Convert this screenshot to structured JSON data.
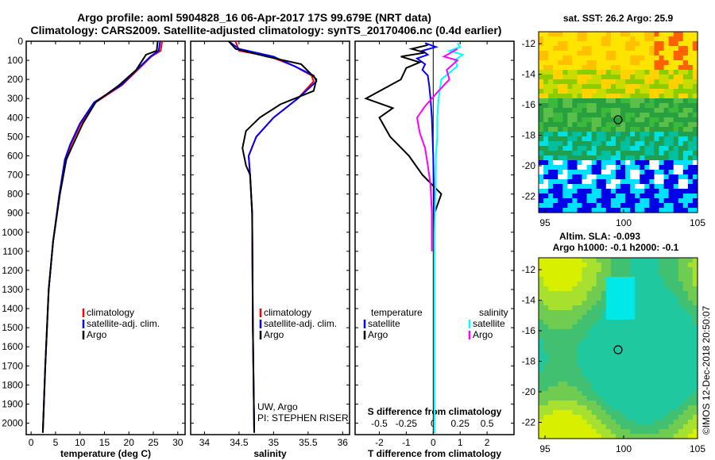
{
  "header": {
    "title_line1": "Argo profile: aoml 5904828_16 06-Apr-2017 17S 99.679E (NRT data)",
    "title_line2": "Climatology: CARS2009. Satellite-adjusted climatology: synTS_20170406.nc (0.4d earlier)"
  },
  "colors": {
    "climatology": "#ff0000",
    "satellite": "#0000ff",
    "argo": "#000000",
    "salinity_satellite": "#00ffff",
    "salinity_argo": "#ff00ff"
  },
  "chart_data": [
    {
      "id": "temperature",
      "type": "line",
      "xlabel": "temperature (deg C)",
      "xlim": [
        -1,
        31.5
      ],
      "xticks": [
        0,
        5,
        10,
        15,
        20,
        25,
        30
      ],
      "xtick_labels": [
        "0",
        "5",
        "10",
        "15",
        "20",
        "25",
        "30"
      ],
      "ylim": [
        2060,
        0
      ],
      "yticks": [
        0,
        100,
        200,
        300,
        400,
        500,
        600,
        700,
        800,
        900,
        1000,
        1100,
        1200,
        1300,
        1400,
        1500,
        1600,
        1700,
        1800,
        1900,
        2000
      ],
      "ytick_labels": [
        "0",
        "100",
        "200",
        "300",
        "400",
        "500",
        "600",
        "700",
        "800",
        "900",
        "1000",
        "1100",
        "1200",
        "1300",
        "1400",
        "1500",
        "1600",
        "1700",
        "1800",
        "1900",
        "2000"
      ],
      "legend": [
        "climatology",
        "satellite-adj. clim.",
        "Argo"
      ],
      "series": [
        {
          "name": "climatology",
          "color": "#ff0000",
          "points": [
            [
              26.8,
              0
            ],
            [
              26.5,
              50
            ],
            [
              24.6,
              80
            ],
            [
              21.8,
              150
            ],
            [
              18.6,
              230
            ],
            [
              13.2,
              320
            ],
            [
              10.2,
              430
            ],
            [
              8.2,
              540
            ],
            [
              7.0,
              620
            ],
            [
              5.8,
              800
            ],
            [
              4.5,
              1050
            ],
            [
              3.6,
              1300
            ],
            [
              2.9,
              1700
            ],
            [
              2.4,
              2050
            ]
          ]
        },
        {
          "name": "satellite-adj. clim.",
          "color": "#0000ff",
          "points": [
            [
              26.4,
              0
            ],
            [
              26.1,
              50
            ],
            [
              24.4,
              80
            ],
            [
              21.6,
              150
            ],
            [
              18.4,
              230
            ],
            [
              12.9,
              320
            ],
            [
              10.0,
              430
            ],
            [
              8.0,
              540
            ],
            [
              6.9,
              620
            ],
            [
              5.8,
              800
            ],
            [
              4.5,
              1050
            ],
            [
              3.6,
              1300
            ],
            [
              2.9,
              1700
            ],
            [
              2.4,
              2050
            ]
          ]
        },
        {
          "name": "Argo",
          "color": "#000000",
          "points": [
            [
              25.9,
              0
            ],
            [
              25.7,
              50
            ],
            [
              23.5,
              70
            ],
            [
              21.5,
              150
            ],
            [
              18.0,
              230
            ],
            [
              13.2,
              320
            ],
            [
              10.6,
              430
            ],
            [
              8.6,
              540
            ],
            [
              7.2,
              620
            ],
            [
              5.9,
              800
            ],
            [
              4.5,
              1050
            ],
            [
              3.6,
              1300
            ],
            [
              2.9,
              1700
            ],
            [
              2.4,
              2050
            ]
          ]
        }
      ]
    },
    {
      "id": "salinity",
      "type": "line",
      "xlabel": "salinity",
      "xlim": [
        33.8,
        36.1
      ],
      "xticks": [
        34,
        34.5,
        35,
        35.5,
        36
      ],
      "xtick_labels": [
        "34",
        "34.5",
        "35",
        "35.5",
        "36"
      ],
      "ylim": [
        2060,
        0
      ],
      "legend": [
        "climatology",
        "satellite-adj. clim.",
        "Argo"
      ],
      "annotations": [
        "UW, Argo",
        "PI: STEPHEN RISER"
      ],
      "series": [
        {
          "name": "climatology",
          "color": "#ff0000",
          "points": [
            [
              34.45,
              0
            ],
            [
              34.5,
              50
            ],
            [
              34.95,
              80
            ],
            [
              35.3,
              130
            ],
            [
              35.55,
              180
            ],
            [
              35.58,
              210
            ],
            [
              35.35,
              300
            ],
            [
              35.0,
              400
            ],
            [
              34.75,
              500
            ],
            [
              34.64,
              600
            ],
            [
              34.66,
              700
            ],
            [
              34.69,
              900
            ],
            [
              34.7,
              1500
            ],
            [
              34.72,
              2050
            ]
          ]
        },
        {
          "name": "satellite-adj. clim.",
          "color": "#0000ff",
          "points": [
            [
              34.35,
              0
            ],
            [
              34.5,
              40
            ],
            [
              35.0,
              80
            ],
            [
              35.3,
              130
            ],
            [
              35.58,
              180
            ],
            [
              35.62,
              210
            ],
            [
              35.35,
              300
            ],
            [
              35.0,
              400
            ],
            [
              34.75,
              500
            ],
            [
              34.64,
              600
            ],
            [
              34.66,
              700
            ],
            [
              34.69,
              900
            ],
            [
              34.7,
              1500
            ],
            [
              34.72,
              2050
            ]
          ]
        },
        {
          "name": "Argo",
          "color": "#000000",
          "points": [
            [
              34.35,
              0
            ],
            [
              34.45,
              40
            ],
            [
              34.9,
              80
            ],
            [
              35.4,
              120
            ],
            [
              35.62,
              200
            ],
            [
              35.58,
              260
            ],
            [
              35.1,
              330
            ],
            [
              34.8,
              400
            ],
            [
              34.6,
              470
            ],
            [
              34.55,
              560
            ],
            [
              34.6,
              650
            ],
            [
              34.66,
              700
            ],
            [
              34.69,
              900
            ],
            [
              34.7,
              1500
            ],
            [
              34.72,
              2050
            ]
          ]
        }
      ]
    },
    {
      "id": "difference",
      "type": "line",
      "xlabel": "T difference from climatology",
      "xlabel_top": "S difference from climatology",
      "xlim": [
        -2.9,
        3.0
      ],
      "xticks": [
        -2,
        -1,
        0,
        1,
        2
      ],
      "xtick_labels": [
        "-2",
        "-1",
        "0",
        "1",
        "2"
      ],
      "sxticks": [
        -2,
        -1,
        0,
        1,
        2
      ],
      "sxtick_labels": [
        "-0.5",
        "-0.25",
        "0",
        "0.25",
        "0.5"
      ],
      "ylim": [
        2060,
        0
      ],
      "legend_left_title": "temperature",
      "legend_right_title": "salinity",
      "legend_left": [
        "satellite",
        "Argo"
      ],
      "legend_right": [
        "satellite",
        "Argo"
      ],
      "series": [
        {
          "name": "temperature satellite",
          "color": "#0000ff",
          "points": [
            [
              -0.3,
              10
            ],
            [
              0.1,
              30
            ],
            [
              -0.4,
              50
            ],
            [
              -0.2,
              70
            ],
            [
              -0.6,
              90
            ],
            [
              -0.3,
              120
            ],
            [
              -0.4,
              150
            ],
            [
              -0.2,
              180
            ],
            [
              -0.15,
              230
            ],
            [
              -0.1,
              300
            ],
            [
              -0.05,
              400
            ],
            [
              0,
              600
            ],
            [
              0.05,
              1000
            ],
            [
              0.05,
              1500
            ],
            [
              0.05,
              2050
            ]
          ]
        },
        {
          "name": "temperature Argo",
          "color": "#000000",
          "points": [
            [
              -0.2,
              20
            ],
            [
              -0.8,
              40
            ],
            [
              -0.3,
              60
            ],
            [
              -1.2,
              80
            ],
            [
              -0.5,
              110
            ],
            [
              -1.0,
              140
            ],
            [
              -1.2,
              200
            ],
            [
              -2.5,
              300
            ],
            [
              -1.5,
              350
            ],
            [
              -2.0,
              400
            ],
            [
              -1.6,
              500
            ],
            [
              -0.9,
              600
            ],
            [
              -0.4,
              700
            ],
            [
              0.3,
              800
            ],
            [
              0.05,
              900
            ],
            [
              0.05,
              1100
            ],
            [
              0.05,
              1500
            ],
            [
              0.05,
              2050
            ]
          ]
        },
        {
          "name": "salinity satellite",
          "color": "#00ffff",
          "points": [
            [
              0.9,
              10
            ],
            [
              1.0,
              30
            ],
            [
              0.6,
              50
            ],
            [
              1.1,
              70
            ],
            [
              0.8,
              100
            ],
            [
              0.9,
              130
            ],
            [
              0.3,
              200
            ],
            [
              0.2,
              300
            ],
            [
              0.15,
              400
            ],
            [
              0.15,
              500
            ],
            [
              0.1,
              600
            ],
            [
              0.08,
              800
            ],
            [
              0.05,
              1000
            ],
            [
              0.05,
              1500
            ],
            [
              0.05,
              2050
            ]
          ]
        },
        {
          "name": "salinity Argo",
          "color": "#ff00ff",
          "points": [
            [
              0.9,
              40
            ],
            [
              0.4,
              80
            ],
            [
              0.9,
              100
            ],
            [
              0.5,
              150
            ],
            [
              0.6,
              200
            ],
            [
              0.2,
              260
            ],
            [
              -0.3,
              340
            ],
            [
              -0.6,
              400
            ],
            [
              -0.5,
              480
            ],
            [
              -0.3,
              560
            ],
            [
              -0.2,
              650
            ],
            [
              -0.1,
              750
            ],
            [
              -0.05,
              900
            ],
            [
              -0.05,
              1100
            ]
          ]
        }
      ]
    }
  ],
  "maps": [
    {
      "id": "sst",
      "title_line1": "sat. SST: 26.2 Argo: 25.9",
      "title_line2": "",
      "xticks": [
        "95",
        "100",
        "105"
      ],
      "yticks": [
        "-12",
        "-14",
        "-16",
        "-18",
        "-20",
        "-22"
      ]
    },
    {
      "id": "sla",
      "title_line1": "Altim. SLA: -0.093",
      "title_line2": "Argo h1000: -0.1 h2000: -0.1",
      "xticks": [
        "95",
        "100",
        "105"
      ],
      "yticks": [
        "-12",
        "-14",
        "-16",
        "-18",
        "-20",
        "-22"
      ]
    }
  ],
  "credit": "©IMOS 12-Dec-2018 20:50:07"
}
